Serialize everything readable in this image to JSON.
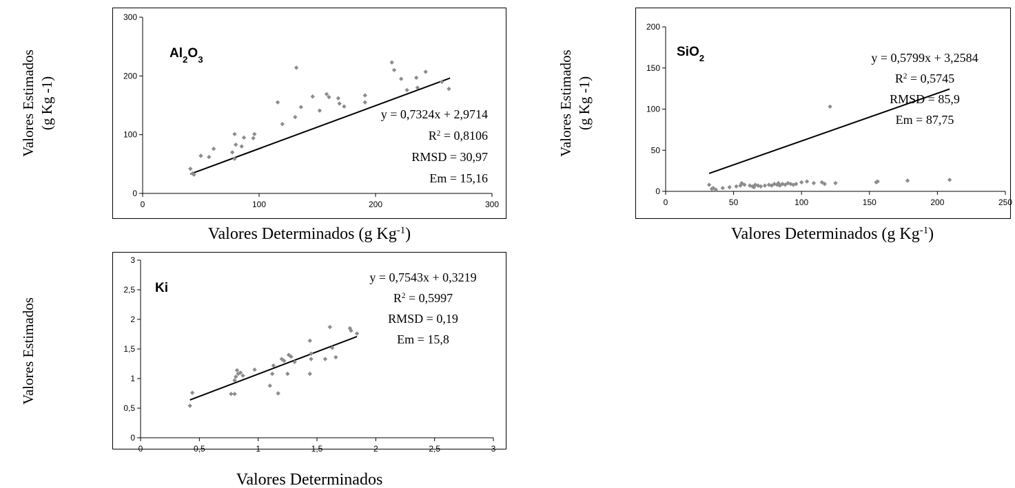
{
  "chart_data": [
    {
      "id": "al2o3",
      "type": "scatter",
      "title_parts": [
        [
          "Al",
          ""
        ],
        [
          "2",
          "sub"
        ],
        [
          "O",
          ""
        ],
        [
          "3",
          "sub"
        ]
      ],
      "xlabel_parts": [
        [
          "Valores Determinados (g Kg",
          ""
        ],
        [
          "-1",
          "sup"
        ],
        [
          ")",
          ""
        ]
      ],
      "ylabel_lines": [
        "Valores Estimados",
        "(g Kg -1)"
      ],
      "xlim": [
        0,
        300
      ],
      "ylim": [
        0,
        300
      ],
      "xticks": [
        0,
        100,
        200,
        300
      ],
      "yticks": [
        0,
        100,
        200,
        300
      ],
      "decimal_comma": true,
      "grid": false,
      "trendline": {
        "slope": 0.7324,
        "intercept": 2.9714,
        "x_range": [
          41,
          264
        ]
      },
      "annotation_lines": [
        [
          [
            "y = 0,7324x + 2,9714",
            ""
          ]
        ],
        [
          [
            "R",
            ""
          ],
          [
            "2",
            "sup"
          ],
          [
            " = 0,8106",
            ""
          ]
        ],
        [
          [
            "RMSD = 30,97",
            ""
          ]
        ],
        [
          [
            "Em = 15,16",
            ""
          ]
        ]
      ],
      "points": [
        [
          41,
          42
        ],
        [
          43,
          34
        ],
        [
          44,
          32
        ],
        [
          50,
          64
        ],
        [
          57,
          62
        ],
        [
          61,
          76
        ],
        [
          77,
          70
        ],
        [
          79,
          59
        ],
        [
          79,
          101
        ],
        [
          80,
          83
        ],
        [
          85,
          80
        ],
        [
          87,
          95
        ],
        [
          95,
          94
        ],
        [
          96,
          101
        ],
        [
          116,
          155
        ],
        [
          120,
          118
        ],
        [
          131,
          130
        ],
        [
          132,
          214
        ],
        [
          136,
          147
        ],
        [
          146,
          165
        ],
        [
          152,
          141
        ],
        [
          158,
          169
        ],
        [
          160,
          164
        ],
        [
          168,
          162
        ],
        [
          169,
          153
        ],
        [
          173,
          148
        ],
        [
          191,
          167
        ],
        [
          191,
          155
        ],
        [
          214,
          223
        ],
        [
          216,
          210
        ],
        [
          222,
          195
        ],
        [
          227,
          176
        ],
        [
          235,
          197
        ],
        [
          236,
          180
        ],
        [
          243,
          207
        ],
        [
          257,
          190
        ],
        [
          263,
          178
        ]
      ]
    },
    {
      "id": "sio2",
      "type": "scatter",
      "title_parts": [
        [
          "SiO",
          ""
        ],
        [
          "2",
          "sub"
        ]
      ],
      "xlabel_parts": [
        [
          "Valores Determinados (g Kg",
          ""
        ],
        [
          "-1",
          "sup"
        ],
        [
          ")",
          ""
        ]
      ],
      "ylabel_lines": [
        "Valores Estimados",
        "(g Kg -1)"
      ],
      "xlim": [
        0,
        250
      ],
      "ylim": [
        0,
        200
      ],
      "xticks": [
        0,
        50,
        100,
        150,
        200,
        250
      ],
      "yticks": [
        0,
        50,
        100,
        150,
        200
      ],
      "decimal_comma": true,
      "grid": false,
      "trendline": {
        "slope": 0.5799,
        "intercept": 3.2584,
        "x_range": [
          32,
          209
        ]
      },
      "annotation_lines": [
        [
          [
            "y = 0,5799x + 3,2584",
            ""
          ]
        ],
        [
          [
            "R",
            ""
          ],
          [
            "2",
            "sup"
          ],
          [
            " = 0,5745",
            ""
          ]
        ],
        [
          [
            "RMSD = 85,9",
            ""
          ]
        ],
        [
          [
            "Em = 87,75",
            ""
          ]
        ]
      ],
      "points": [
        [
          32,
          8
        ],
        [
          34,
          3
        ],
        [
          35,
          4
        ],
        [
          37,
          2
        ],
        [
          42,
          4
        ],
        [
          47,
          5
        ],
        [
          52,
          6
        ],
        [
          55,
          7
        ],
        [
          56,
          10
        ],
        [
          58,
          8
        ],
        [
          62,
          7
        ],
        [
          64,
          6
        ],
        [
          65,
          5
        ],
        [
          66,
          8
        ],
        [
          68,
          7
        ],
        [
          70,
          6
        ],
        [
          73,
          7
        ],
        [
          76,
          8
        ],
        [
          78,
          7
        ],
        [
          80,
          9
        ],
        [
          82,
          8
        ],
        [
          83,
          10
        ],
        [
          84,
          7
        ],
        [
          86,
          9
        ],
        [
          88,
          8
        ],
        [
          90,
          10
        ],
        [
          92,
          9
        ],
        [
          94,
          8
        ],
        [
          96,
          9
        ],
        [
          100,
          11
        ],
        [
          104,
          12
        ],
        [
          109,
          10
        ],
        [
          115,
          11
        ],
        [
          117,
          9
        ],
        [
          121,
          103
        ],
        [
          125,
          10
        ],
        [
          155,
          11
        ],
        [
          156,
          12
        ],
        [
          178,
          13
        ],
        [
          209,
          14
        ]
      ]
    },
    {
      "id": "ki",
      "type": "scatter",
      "title_parts": [
        [
          "Ki",
          ""
        ]
      ],
      "xlabel_parts": [
        [
          "Valores Determinados",
          ""
        ]
      ],
      "ylabel_lines": [
        "Valores Estimados"
      ],
      "xlim": [
        0,
        3
      ],
      "ylim": [
        0,
        3
      ],
      "xticks": [
        0,
        0.5,
        1,
        1.5,
        2,
        2.5,
        3
      ],
      "yticks": [
        0,
        0.5,
        1,
        1.5,
        2,
        2.5,
        3
      ],
      "decimal_comma": true,
      "grid": false,
      "trendline": {
        "slope": 0.7543,
        "intercept": 0.3219,
        "x_range": [
          0.42,
          1.84
        ]
      },
      "annotation_lines": [
        [
          [
            "y = 0,7543x + 0,3219",
            ""
          ]
        ],
        [
          [
            "R",
            ""
          ],
          [
            "2",
            "sup"
          ],
          [
            " = 0,5997",
            ""
          ]
        ],
        [
          [
            "RMSD = 0,19",
            ""
          ]
        ],
        [
          [
            "Em = 15,8",
            ""
          ]
        ]
      ],
      "points": [
        [
          0.42,
          0.54
        ],
        [
          0.44,
          0.76
        ],
        [
          0.77,
          0.74
        ],
        [
          0.8,
          0.74
        ],
        [
          0.8,
          0.97
        ],
        [
          0.81,
          1.03
        ],
        [
          0.82,
          1.14
        ],
        [
          0.83,
          1.08
        ],
        [
          0.85,
          1.1
        ],
        [
          0.87,
          1.05
        ],
        [
          0.97,
          1.15
        ],
        [
          1.1,
          0.88
        ],
        [
          1.12,
          1.08
        ],
        [
          1.13,
          1.22
        ],
        [
          1.17,
          0.75
        ],
        [
          1.2,
          1.33
        ],
        [
          1.22,
          1.3
        ],
        [
          1.25,
          1.08
        ],
        [
          1.26,
          1.4
        ],
        [
          1.28,
          1.37
        ],
        [
          1.31,
          1.28
        ],
        [
          1.44,
          1.64
        ],
        [
          1.44,
          1.08
        ],
        [
          1.45,
          1.42
        ],
        [
          1.45,
          1.33
        ],
        [
          1.57,
          1.33
        ],
        [
          1.61,
          1.87
        ],
        [
          1.63,
          1.52
        ],
        [
          1.66,
          1.36
        ],
        [
          1.78,
          1.85
        ],
        [
          1.79,
          1.81
        ],
        [
          1.84,
          1.76
        ]
      ]
    }
  ]
}
